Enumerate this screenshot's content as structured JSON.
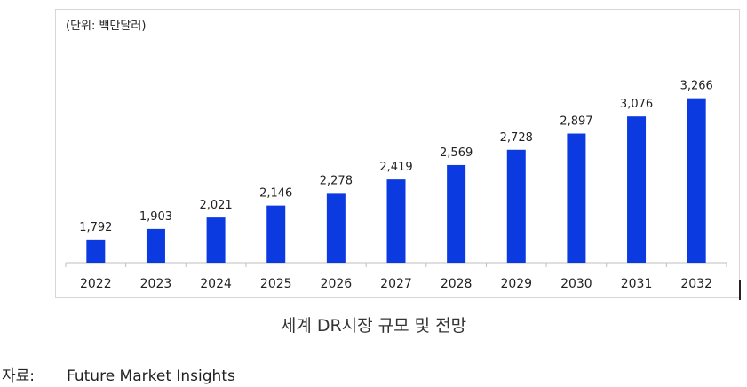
{
  "unit_label": "(단위: 백만달러)",
  "caption": "세계 DR시장 규모 및 전망",
  "source": {
    "label": "자료:",
    "value": "Future Market Insights"
  },
  "colors": {
    "bar": "#0b3be0",
    "axis": "#bfbfbf",
    "frame": "#d6d6d6"
  },
  "chart_data": {
    "type": "bar",
    "title": "",
    "xlabel": "",
    "ylabel": "(단위: 백만달러)",
    "categories": [
      "2022",
      "2023",
      "2024",
      "2025",
      "2026",
      "2027",
      "2028",
      "2029",
      "2030",
      "2031",
      "2032"
    ],
    "values": [
      1792,
      1903,
      2021,
      2146,
      2278,
      2419,
      2569,
      2728,
      2897,
      3076,
      3266
    ],
    "value_labels": [
      "1,792",
      "1,903",
      "2,021",
      "2,146",
      "2,278",
      "2,419",
      "2,569",
      "2,728",
      "2,897",
      "3,076",
      "3,266"
    ],
    "ylim": [
      1550,
      3300
    ],
    "grid": false,
    "legend": "none"
  }
}
